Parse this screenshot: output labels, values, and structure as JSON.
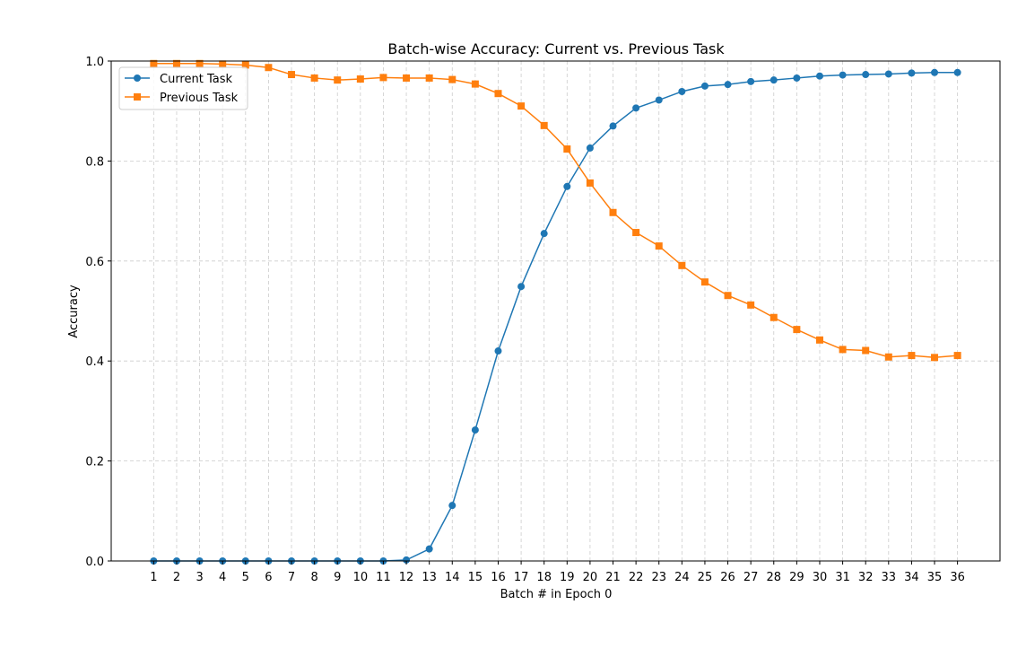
{
  "chart_data": {
    "type": "line",
    "title": "Batch-wise Accuracy: Current vs. Previous Task",
    "xlabel": "Batch # in Epoch 0",
    "ylabel": "Accuracy",
    "x": [
      1,
      2,
      3,
      4,
      5,
      6,
      7,
      8,
      9,
      10,
      11,
      12,
      13,
      14,
      15,
      16,
      17,
      18,
      19,
      20,
      21,
      22,
      23,
      24,
      25,
      26,
      27,
      28,
      29,
      30,
      31,
      32,
      33,
      34,
      35,
      36
    ],
    "xticks": [
      "1",
      "2",
      "3",
      "4",
      "5",
      "6",
      "7",
      "8",
      "9",
      "10",
      "11",
      "12",
      "13",
      "14",
      "15",
      "16",
      "17",
      "18",
      "19",
      "20",
      "21",
      "22",
      "23",
      "24",
      "25",
      "26",
      "27",
      "28",
      "29",
      "30",
      "31",
      "32",
      "33",
      "34",
      "35",
      "36"
    ],
    "xlim": [
      -0.85,
      37.85
    ],
    "ylim": [
      0.0,
      1.0
    ],
    "yticks": [
      "0.0",
      "0.2",
      "0.4",
      "0.6",
      "0.8",
      "1.0"
    ],
    "grid": true,
    "legend_position": "upper-left",
    "series": [
      {
        "name": "Current Task",
        "color": "#1f77b4",
        "marker": "circle",
        "values": [
          0.0,
          0.0,
          0.0,
          0.0,
          0.0,
          0.0,
          0.0,
          0.0,
          0.0,
          0.0,
          0.0,
          0.002,
          0.024,
          0.111,
          0.262,
          0.42,
          0.549,
          0.655,
          0.749,
          0.826,
          0.87,
          0.906,
          0.922,
          0.939,
          0.95,
          0.953,
          0.959,
          0.962,
          0.966,
          0.97,
          0.972,
          0.973,
          0.974,
          0.976,
          0.977,
          0.977
        ]
      },
      {
        "name": "Previous Task",
        "color": "#ff7f0e",
        "marker": "square",
        "values": [
          0.995,
          0.995,
          0.995,
          0.994,
          0.992,
          0.987,
          0.973,
          0.966,
          0.962,
          0.964,
          0.967,
          0.966,
          0.966,
          0.963,
          0.954,
          0.935,
          0.91,
          0.871,
          0.824,
          0.756,
          0.697,
          0.657,
          0.63,
          0.591,
          0.558,
          0.531,
          0.512,
          0.487,
          0.463,
          0.442,
          0.423,
          0.421,
          0.408,
          0.411,
          0.407,
          0.411
        ]
      }
    ]
  }
}
